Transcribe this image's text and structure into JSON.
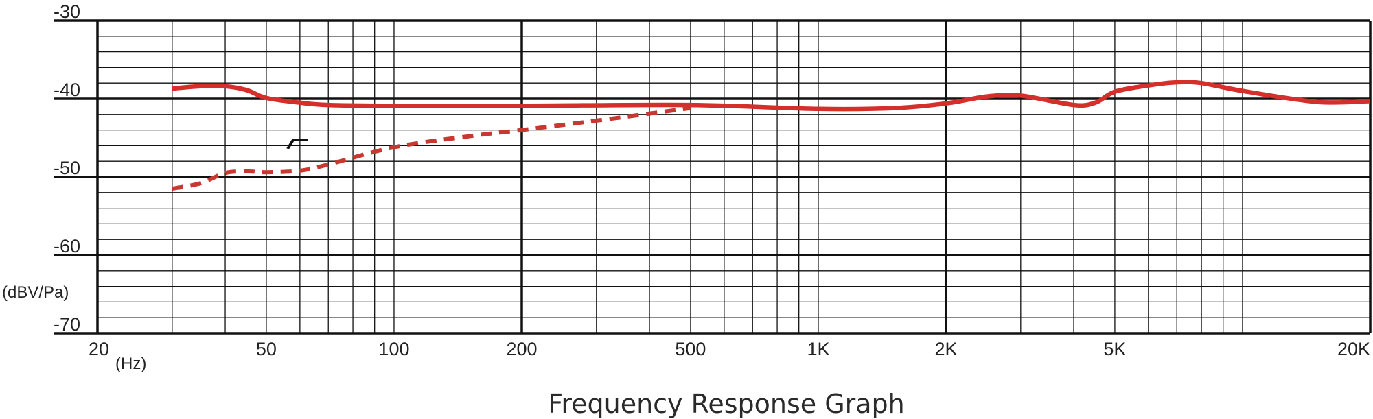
{
  "chart_data": {
    "type": "line",
    "title": "Frequency Response Graph",
    "xlabel": "(Hz)",
    "ylabel": "(dBV/Pa)",
    "x_scale": "log",
    "xlim": [
      20,
      20000
    ],
    "ylim": [
      -70,
      -30
    ],
    "grid": true,
    "x_tick_values": [
      20,
      50,
      100,
      200,
      500,
      1000,
      2000,
      5000,
      20000
    ],
    "x_tick_labels": [
      "20",
      "50",
      "100",
      "200",
      "500",
      "1K",
      "2K",
      "5K",
      "20K"
    ],
    "y_tick_values": [
      -30,
      -40,
      -50,
      -60,
      -70
    ],
    "y_tick_labels": [
      "-30",
      "-40",
      "-50",
      "-60",
      "-70"
    ],
    "series": [
      {
        "style": "solid",
        "color": "#d42f2a",
        "x": [
          30,
          35,
          40,
          45,
          50,
          60,
          70,
          100,
          200,
          500,
          1000,
          1500,
          2000,
          2500,
          3000,
          4000,
          4500,
          5000,
          6000,
          7000,
          8000,
          10000,
          15000,
          20000
        ],
        "y": [
          -38.7,
          -38.4,
          -38.4,
          -38.9,
          -39.9,
          -40.5,
          -40.8,
          -40.9,
          -40.9,
          -40.8,
          -41.3,
          -41.2,
          -40.6,
          -39.7,
          -39.6,
          -40.8,
          -40.5,
          -39.1,
          -38.3,
          -37.9,
          -38.0,
          -39.0,
          -40.4,
          -40.3
        ]
      },
      {
        "style": "dashed",
        "color": "#c73830",
        "x": [
          30,
          35,
          40,
          45,
          50,
          60,
          70,
          100,
          150,
          200,
          300,
          500
        ],
        "y": [
          -51.5,
          -50.8,
          -49.5,
          -49.3,
          -49.4,
          -49.2,
          -48.4,
          -46.2,
          -44.8,
          -44.0,
          -42.8,
          -41.2
        ]
      }
    ]
  }
}
